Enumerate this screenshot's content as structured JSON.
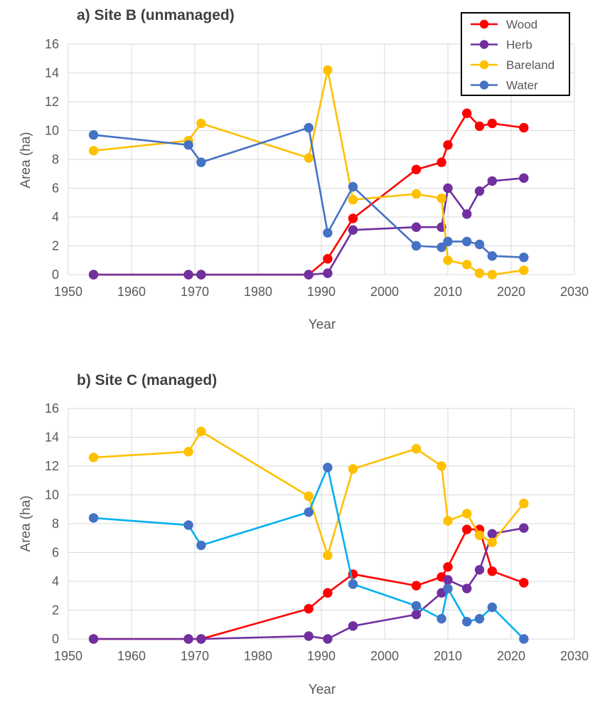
{
  "chart_data": [
    {
      "type": "line",
      "title": "a) Site B (unmanaged)",
      "xlabel": "Year",
      "ylabel": "Area (ha)",
      "xlim": [
        1950,
        2030
      ],
      "ylim": [
        0,
        16
      ],
      "xticks": [
        "1950",
        "1960",
        "1970",
        "1980",
        "1990",
        "2000",
        "2010",
        "2020",
        "2030"
      ],
      "yticks": [
        "0",
        "2",
        "4",
        "6",
        "8",
        "10",
        "12",
        "14",
        "16"
      ],
      "grid": true,
      "legend": "top-right",
      "series": [
        {
          "name": "Wood",
          "color": "#ff0000",
          "points": [
            [
              1954,
              0
            ],
            [
              1969,
              0
            ],
            [
              1971,
              0
            ],
            [
              1988,
              0
            ],
            [
              1991,
              1.1
            ],
            [
              1995,
              3.9
            ],
            [
              2005,
              7.3
            ],
            [
              2009,
              7.8
            ],
            [
              2010,
              9.0
            ],
            [
              2013,
              11.2
            ],
            [
              2015,
              10.3
            ],
            [
              2017,
              10.5
            ],
            [
              2022,
              10.2
            ]
          ]
        },
        {
          "name": "Herb",
          "color": "#7030a0",
          "points": [
            [
              1954,
              0
            ],
            [
              1969,
              0
            ],
            [
              1971,
              0
            ],
            [
              1988,
              0
            ],
            [
              1991,
              0.1
            ],
            [
              1995,
              3.1
            ],
            [
              2005,
              3.3
            ],
            [
              2009,
              3.3
            ],
            [
              2010,
              6.0
            ],
            [
              2013,
              4.2
            ],
            [
              2015,
              5.8
            ],
            [
              2017,
              6.5
            ],
            [
              2022,
              6.7
            ]
          ]
        },
        {
          "name": "Bareland",
          "color": "#ffc000",
          "points": [
            [
              1954,
              8.6
            ],
            [
              1969,
              9.3
            ],
            [
              1971,
              10.5
            ],
            [
              1988,
              8.1
            ],
            [
              1991,
              14.2
            ],
            [
              1995,
              5.2
            ],
            [
              2005,
              5.6
            ],
            [
              2009,
              5.3
            ],
            [
              2010,
              1.0
            ],
            [
              2013,
              0.7
            ],
            [
              2015,
              0.1
            ],
            [
              2017,
              0.0
            ],
            [
              2022,
              0.3
            ]
          ]
        },
        {
          "name": "Water",
          "color": "#4472c4",
          "points": [
            [
              1954,
              9.7
            ],
            [
              1969,
              9.0
            ],
            [
              1971,
              7.8
            ],
            [
              1988,
              10.2
            ],
            [
              1991,
              2.9
            ],
            [
              1995,
              6.1
            ],
            [
              2005,
              2.0
            ],
            [
              2009,
              1.9
            ],
            [
              2010,
              2.3
            ],
            [
              2013,
              2.3
            ],
            [
              2015,
              2.1
            ],
            [
              2017,
              1.3
            ],
            [
              2022,
              1.2
            ]
          ]
        }
      ]
    },
    {
      "type": "line",
      "title": "b) Site C (managed)",
      "xlabel": "Year",
      "ylabel": "Area (ha)",
      "xlim": [
        1950,
        2030
      ],
      "ylim": [
        0,
        16
      ],
      "xticks": [
        "1950",
        "1960",
        "1970",
        "1980",
        "1990",
        "2000",
        "2010",
        "2020",
        "2030"
      ],
      "yticks": [
        "0",
        "2",
        "4",
        "6",
        "8",
        "10",
        "12",
        "14",
        "16"
      ],
      "grid": true,
      "legend": "none",
      "series": [
        {
          "color": "#ff0000",
          "points": [
            [
              1954,
              0
            ],
            [
              1969,
              0
            ],
            [
              1971,
              0
            ],
            [
              1988,
              2.1
            ],
            [
              1991,
              3.2
            ],
            [
              1995,
              4.5
            ],
            [
              2005,
              3.7
            ],
            [
              2009,
              4.3
            ],
            [
              2010,
              5.0
            ],
            [
              2013,
              7.6
            ],
            [
              2015,
              7.6
            ],
            [
              2017,
              4.7
            ],
            [
              2022,
              3.9
            ]
          ]
        },
        {
          "color": "#7030a0",
          "points": [
            [
              1954,
              0
            ],
            [
              1969,
              0
            ],
            [
              1971,
              0
            ],
            [
              1988,
              0.2
            ],
            [
              1991,
              0.0
            ],
            [
              1995,
              0.9
            ],
            [
              2005,
              1.7
            ],
            [
              2009,
              3.2
            ],
            [
              2010,
              4.1
            ],
            [
              2013,
              3.5
            ],
            [
              2015,
              4.8
            ],
            [
              2017,
              7.3
            ],
            [
              2022,
              7.7
            ]
          ]
        },
        {
          "color": "#ffc000",
          "points": [
            [
              1954,
              12.6
            ],
            [
              1969,
              13.0
            ],
            [
              1971,
              14.4
            ],
            [
              1988,
              9.9
            ],
            [
              1991,
              5.8
            ],
            [
              1995,
              11.8
            ],
            [
              2005,
              13.2
            ],
            [
              2009,
              12.0
            ],
            [
              2010,
              8.2
            ],
            [
              2013,
              8.7
            ],
            [
              2015,
              7.2
            ],
            [
              2017,
              6.7
            ],
            [
              2022,
              9.4
            ]
          ]
        },
        {
          "color": "#00b0f0",
          "marker_color": "#4472c4",
          "points": [
            [
              1954,
              8.4
            ],
            [
              1969,
              7.9
            ],
            [
              1971,
              6.5
            ],
            [
              1988,
              8.8
            ],
            [
              1991,
              11.9
            ],
            [
              1995,
              3.8
            ],
            [
              2005,
              2.3
            ],
            [
              2009,
              1.4
            ],
            [
              2010,
              3.5
            ],
            [
              2013,
              1.2
            ],
            [
              2015,
              1.4
            ],
            [
              2017,
              2.2
            ],
            [
              2022,
              0.0
            ]
          ]
        }
      ]
    }
  ]
}
